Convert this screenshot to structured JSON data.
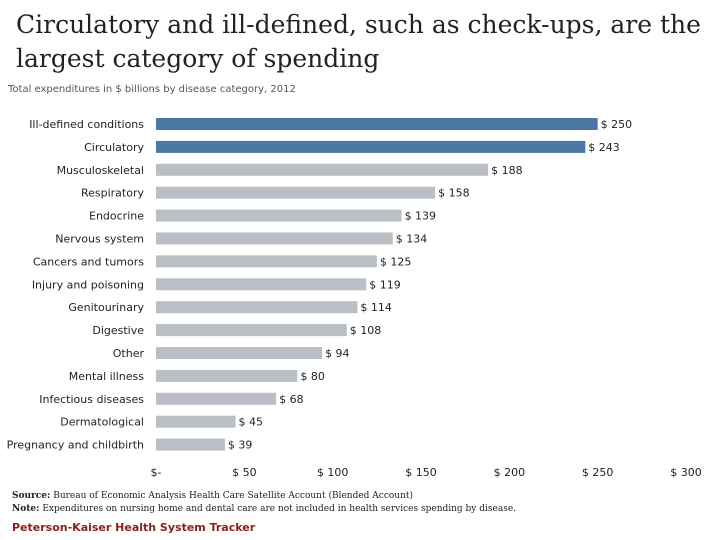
{
  "chart_data": {
    "type": "bar",
    "orientation": "horizontal",
    "title": "Circulatory and ill-defined, such as check-ups, are the largest category of spending",
    "subtitle": "Total expenditures in $ billions by disease category, 2012",
    "categories": [
      "Ill-defined conditions",
      "Circulatory",
      "Musculoskeletal",
      "Respiratory",
      "Endocrine",
      "Nervous system",
      "Cancers and tumors",
      "Injury and poisoning",
      "Genitourinary",
      "Digestive",
      "Other",
      "Mental illness",
      "Infectious diseases",
      "Dermatological",
      "Pregnancy and childbirth"
    ],
    "values": [
      250,
      243,
      188,
      158,
      139,
      134,
      125,
      119,
      114,
      108,
      94,
      80,
      68,
      45,
      39
    ],
    "value_labels": [
      "$ 250",
      "$ 243",
      "$ 188",
      "$ 158",
      "$ 139",
      "$ 134",
      "$ 125",
      "$ 119",
      "$ 114",
      "$ 108",
      "$ 94",
      "$ 80",
      "$ 68",
      "$ 45",
      "$ 39"
    ],
    "highlighted": [
      true,
      true,
      false,
      false,
      false,
      false,
      false,
      false,
      false,
      false,
      false,
      false,
      false,
      false,
      false
    ],
    "xlim": [
      0,
      300
    ],
    "x_ticks": [
      0,
      50,
      100,
      150,
      200,
      250,
      300
    ],
    "x_tick_labels": [
      "$-",
      "$ 50",
      "$ 100",
      "$ 150",
      "$ 200",
      "$ 250",
      "$ 300"
    ],
    "grid": false,
    "colors": {
      "highlight": "#4a77a4",
      "default": "#b9bfc4"
    }
  },
  "footnotes": {
    "source_label": "Source:",
    "source_text": "Bureau of Economic Analysis Health Care Satellite Account (Blended Account)",
    "note_label": "Note:",
    "note_text": "Expenditures on nursing home and dental care are not included in health services spending by disease."
  },
  "brand": "Peterson-Kaiser Health System Tracker"
}
